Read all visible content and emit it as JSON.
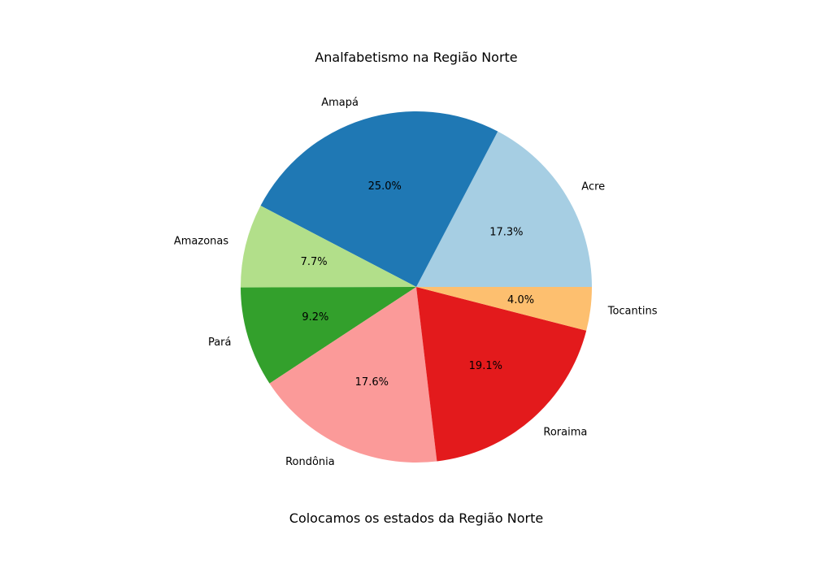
{
  "chart_data": {
    "type": "pie",
    "title": "Analfabetismo na Região Norte",
    "caption": "Colocamos os estados da Região Norte",
    "slices": [
      {
        "label": "Acre",
        "value": 17.3,
        "pct_label": "17.3%",
        "color": "#a6cee3"
      },
      {
        "label": "Amapá",
        "value": 25.0,
        "pct_label": "25.0%",
        "color": "#1f78b4"
      },
      {
        "label": "Amazonas",
        "value": 7.7,
        "pct_label": "7.7%",
        "color": "#b2df8a"
      },
      {
        "label": "Pará",
        "value": 9.2,
        "pct_label": "9.2%",
        "color": "#33a02c"
      },
      {
        "label": "Rondônia",
        "value": 17.6,
        "pct_label": "17.6%",
        "color": "#fb9a99"
      },
      {
        "label": "Roraima",
        "value": 19.1,
        "pct_label": "19.1%",
        "color": "#e31a1c"
      },
      {
        "label": "Tocantins",
        "value": 4.0,
        "pct_label": "4.0%",
        "color": "#fdbf6f"
      }
    ],
    "start_angle_deg": 0,
    "direction": "counterclockwise"
  }
}
